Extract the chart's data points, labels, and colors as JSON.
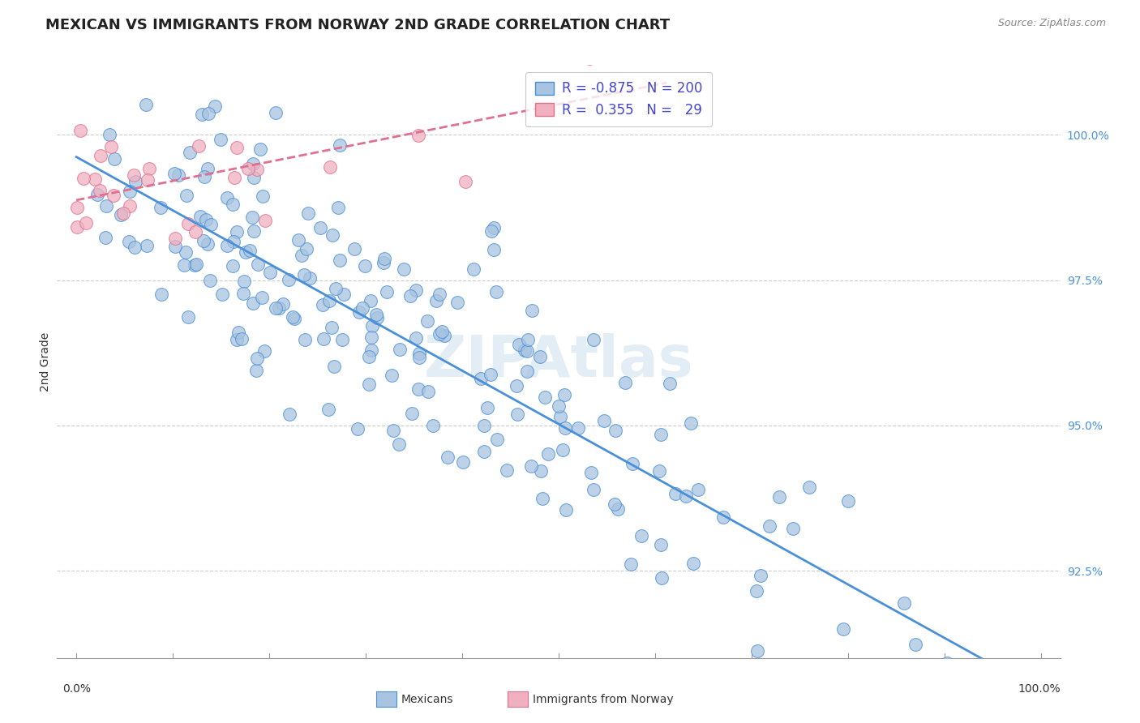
{
  "title": "MEXICAN VS IMMIGRANTS FROM NORWAY 2ND GRADE CORRELATION CHART",
  "source_text": "Source: ZipAtlas.com",
  "ylabel": "2nd Grade",
  "blue_R": -0.875,
  "blue_N": 200,
  "pink_R": 0.355,
  "pink_N": 29,
  "blue_color": "#a8c4e0",
  "pink_color": "#f0b0c0",
  "blue_line_color": "#4a90d9",
  "pink_line_color": "#e07090",
  "legend_text_color": "#4444cc",
  "background_color": "#ffffff",
  "grid_color": "#cccccc",
  "watermark": "ZIPAtlas",
  "title_fontsize": 13,
  "axis_label_fontsize": 10,
  "legend_fontsize": 12,
  "y_min": 91.0,
  "y_max": 101.2
}
